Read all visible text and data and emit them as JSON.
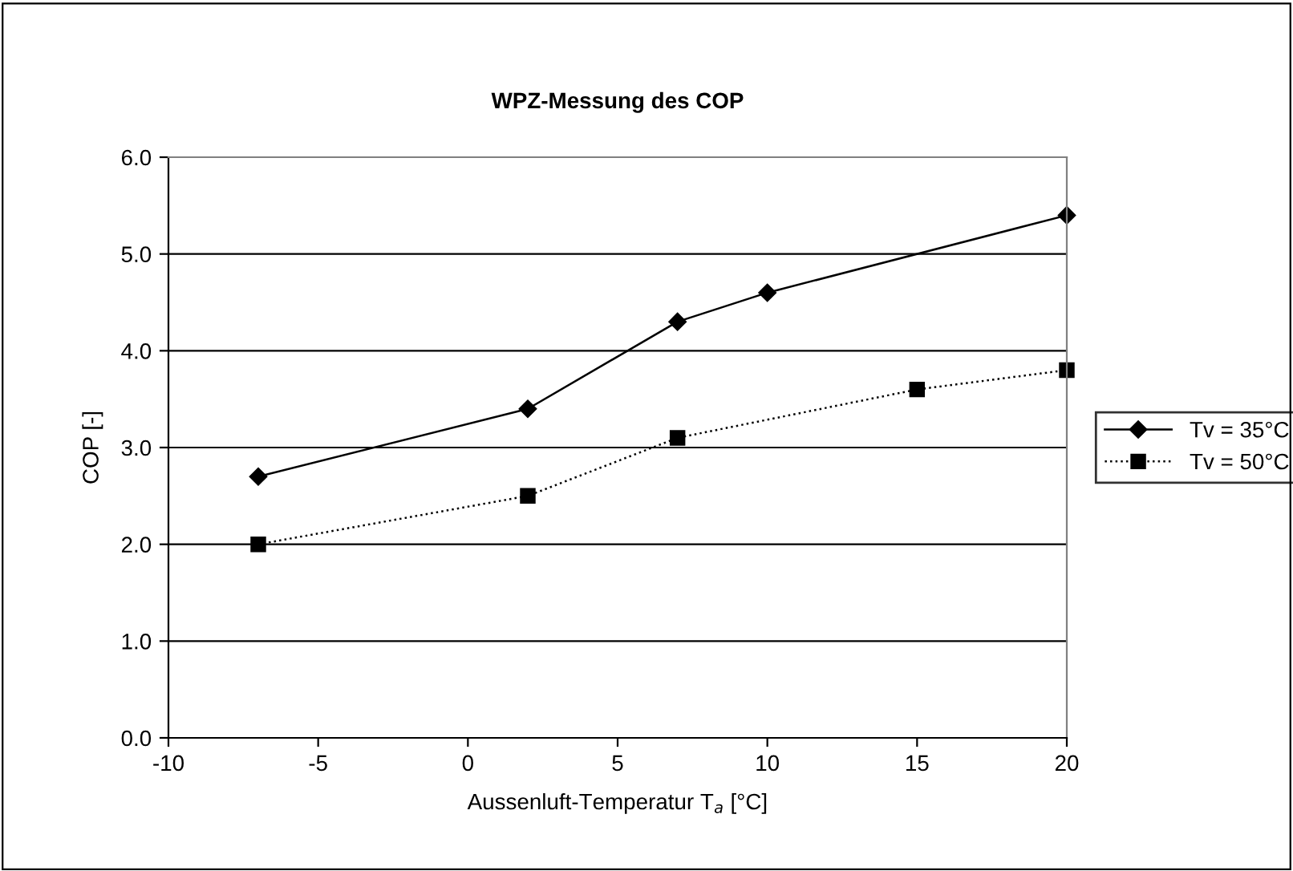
{
  "chart_data": {
    "type": "line",
    "title": "WPZ-Messung des COP",
    "xlabel": "Aussenluft-Temperatur T$_{a}$ [°C]",
    "ylabel": "COP [-]",
    "xlim": [
      -10,
      20
    ],
    "xticks": [
      -10,
      -5,
      0,
      5,
      10,
      15,
      20
    ],
    "ylim": [
      0,
      6
    ],
    "yticks": [
      {
        "value": 0,
        "label": "0.0"
      },
      {
        "value": 1,
        "label": "1.0"
      },
      {
        "value": 2,
        "label": "2.0"
      },
      {
        "value": 3,
        "label": "3.0"
      },
      {
        "value": 4,
        "label": "4.0"
      },
      {
        "value": 5,
        "label": "5.0"
      },
      {
        "value": 6,
        "label": "6.0"
      }
    ],
    "grid": "y",
    "legend": "right",
    "series": [
      {
        "name": "Tv = 35°C",
        "color": "#000000",
        "marker": "diamond",
        "line_style": "solid",
        "x": [
          -7,
          2,
          7,
          10,
          20
        ],
        "values": [
          2.7,
          3.4,
          4.3,
          4.6,
          5.4
        ]
      },
      {
        "name": "Tv = 50°C",
        "color": "#000000",
        "marker": "square",
        "line_style": "dotted",
        "x": [
          -7,
          2,
          7,
          15,
          20
        ],
        "values": [
          2.0,
          2.5,
          3.1,
          3.6,
          3.8
        ]
      }
    ]
  }
}
